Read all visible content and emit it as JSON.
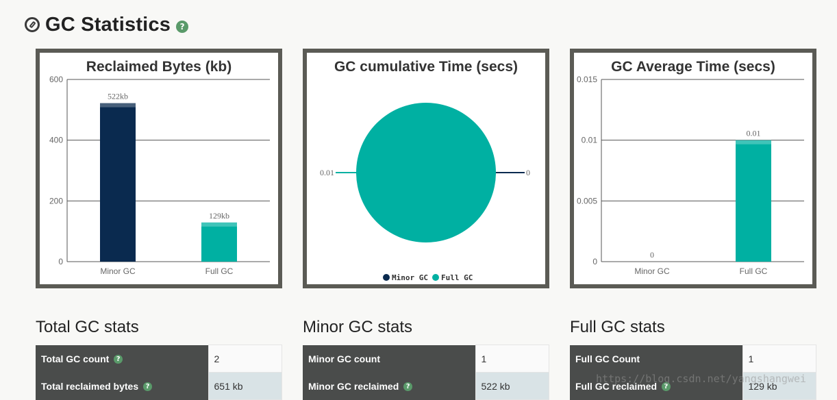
{
  "page": {
    "title": "GC Statistics",
    "help_glyph": "?"
  },
  "chart_data": [
    {
      "type": "bar",
      "title": "Reclaimed Bytes (kb)",
      "categories": [
        "Minor GC",
        "Full GC"
      ],
      "values": [
        522,
        129
      ],
      "data_labels": [
        "522kb",
        "129kb"
      ],
      "colors": [
        "#0a2a4f",
        "#00b0a2"
      ],
      "ylim": [
        0,
        600
      ],
      "yticks": [
        0,
        200,
        400,
        600
      ],
      "ytick_labels": [
        "0",
        "200",
        "400",
        "600"
      ],
      "grid": true
    },
    {
      "type": "pie",
      "title": "GC cumulative Time (secs)",
      "categories": [
        "Minor GC",
        "Full GC"
      ],
      "values": [
        0,
        0.01
      ],
      "data_labels": [
        "0",
        "0.01"
      ],
      "colors": [
        "#0a2a4f",
        "#00b0a2"
      ],
      "legend": {
        "placement": "bottom",
        "entries": [
          "Minor GC",
          "Full GC"
        ]
      }
    },
    {
      "type": "bar",
      "title": "GC Average Time (secs)",
      "categories": [
        "Minor GC",
        "Full GC"
      ],
      "values": [
        0,
        0.01
      ],
      "data_labels": [
        "0",
        "0.01"
      ],
      "colors": [
        "#0a2a4f",
        "#00b0a2"
      ],
      "ylim": [
        0,
        0.015
      ],
      "yticks": [
        0,
        0.005,
        0.01,
        0.015
      ],
      "ytick_labels": [
        "0",
        "0.005",
        "0.01",
        "0.015"
      ],
      "grid": true
    }
  ],
  "stats": [
    {
      "title": "Total GC stats",
      "rows": [
        {
          "label": "Total GC count",
          "value": "2"
        },
        {
          "label": "Total reclaimed bytes",
          "value": "651 kb"
        }
      ]
    },
    {
      "title": "Minor GC stats",
      "rows": [
        {
          "label": "Minor GC count",
          "value": "1"
        },
        {
          "label": "Minor GC reclaimed",
          "value": "522 kb"
        }
      ]
    },
    {
      "title": "Full GC stats",
      "rows": [
        {
          "label": "Full GC Count",
          "value": "1"
        },
        {
          "label": "Full GC reclaimed",
          "value": "129 kb"
        }
      ]
    }
  ],
  "watermark": "https://blog.csdn.net/yangshangwei"
}
